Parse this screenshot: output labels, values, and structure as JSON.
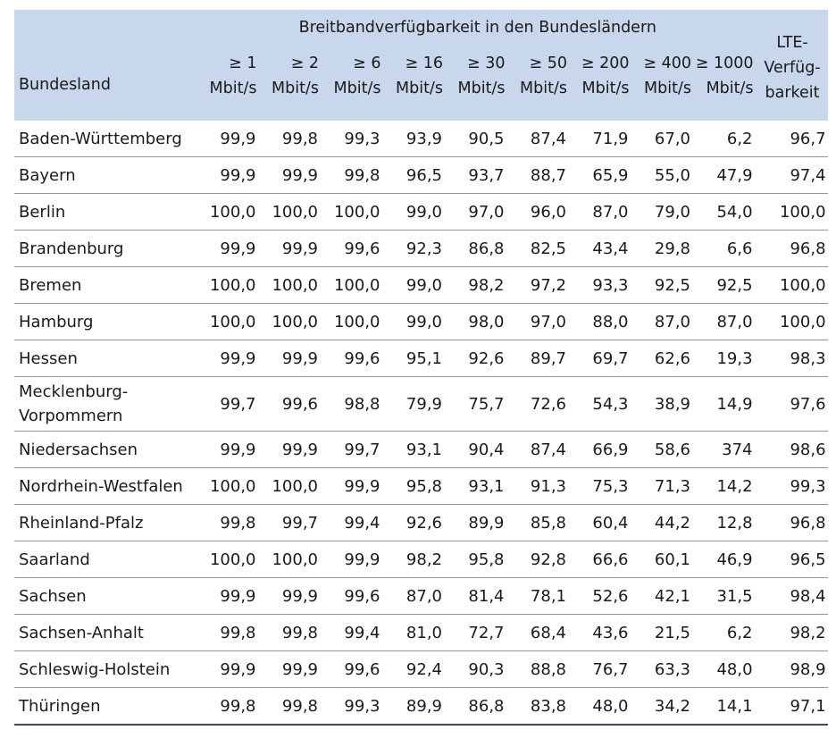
{
  "table": {
    "group_header": "Breitbandverfügbarkeit in den Bundesländern",
    "name_header": "Bundesland",
    "columns": [
      {
        "top": "≥ 1",
        "bottom": "Mbit/s"
      },
      {
        "top": "≥ 2",
        "bottom": "Mbit/s"
      },
      {
        "top": "≥ 6",
        "bottom": "Mbit/s"
      },
      {
        "top": "≥ 16",
        "bottom": "Mbit/s"
      },
      {
        "top": "≥ 30",
        "bottom": "Mbit/s"
      },
      {
        "top": "≥ 50",
        "bottom": "Mbit/s"
      },
      {
        "top": "≥ 200",
        "bottom": "Mbit/s"
      },
      {
        "top": "≥ 400",
        "bottom": "Mbit/s"
      },
      {
        "top": "≥ 1000",
        "bottom": "Mbit/s"
      }
    ],
    "lte_header": [
      "LTE-",
      "Verfüg-",
      "barkeit"
    ],
    "rows": [
      {
        "name": [
          "Baden-Württemberg"
        ],
        "values": [
          "99,9",
          "99,8",
          "99,3",
          "93,9",
          "90,5",
          "87,4",
          "71,9",
          "67,0",
          "6,2"
        ],
        "lte": "96,7"
      },
      {
        "name": [
          "Bayern"
        ],
        "values": [
          "99,9",
          "99,9",
          "99,8",
          "96,5",
          "93,7",
          "88,7",
          "65,9",
          "55,0",
          "47,9"
        ],
        "lte": "97,4"
      },
      {
        "name": [
          "Berlin"
        ],
        "values": [
          "100,0",
          "100,0",
          "100,0",
          "99,0",
          "97,0",
          "96,0",
          "87,0",
          "79,0",
          "54,0"
        ],
        "lte": "100,0"
      },
      {
        "name": [
          "Brandenburg"
        ],
        "values": [
          "99,9",
          "99,9",
          "99,6",
          "92,3",
          "86,8",
          "82,5",
          "43,4",
          "29,8",
          "6,6"
        ],
        "lte": "96,8"
      },
      {
        "name": [
          "Bremen"
        ],
        "values": [
          "100,0",
          "100,0",
          "100,0",
          "99,0",
          "98,2",
          "97,2",
          "93,3",
          "92,5",
          "92,5"
        ],
        "lte": "100,0"
      },
      {
        "name": [
          "Hamburg"
        ],
        "values": [
          "100,0",
          "100,0",
          "100,0",
          "99,0",
          "98,0",
          "97,0",
          "88,0",
          "87,0",
          "87,0"
        ],
        "lte": "100,0"
      },
      {
        "name": [
          "Hessen"
        ],
        "values": [
          "99,9",
          "99,9",
          "99,6",
          "95,1",
          "92,6",
          "89,7",
          "69,7",
          "62,6",
          "19,3"
        ],
        "lte": "98,3"
      },
      {
        "name": [
          "Mecklenburg-",
          "Vorpommern"
        ],
        "values": [
          "99,7",
          "99,6",
          "98,8",
          "79,9",
          "75,7",
          "72,6",
          "54,3",
          "38,9",
          "14,9"
        ],
        "lte": "97,6"
      },
      {
        "name": [
          "Niedersachsen"
        ],
        "values": [
          "99,9",
          "99,9",
          "99,7",
          "93,1",
          "90,4",
          "87,4",
          "66,9",
          "58,6",
          "374"
        ],
        "lte": "98,6"
      },
      {
        "name": [
          "Nordrhein-Westfalen"
        ],
        "values": [
          "100,0",
          "100,0",
          "99,9",
          "95,8",
          "93,1",
          "91,3",
          "75,3",
          "71,3",
          "14,2"
        ],
        "lte": "99,3"
      },
      {
        "name": [
          "Rheinland-Pfalz"
        ],
        "values": [
          "99,8",
          "99,7",
          "99,4",
          "92,6",
          "89,9",
          "85,8",
          "60,4",
          "44,2",
          "12,8"
        ],
        "lte": "96,8"
      },
      {
        "name": [
          "Saarland"
        ],
        "values": [
          "100,0",
          "100,0",
          "99,9",
          "98,2",
          "95,8",
          "92,8",
          "66,6",
          "60,1",
          "46,9"
        ],
        "lte": "96,5"
      },
      {
        "name": [
          "Sachsen"
        ],
        "values": [
          "99,9",
          "99,9",
          "99,6",
          "87,0",
          "81,4",
          "78,1",
          "52,6",
          "42,1",
          "31,5"
        ],
        "lte": "98,4"
      },
      {
        "name": [
          "Sachsen-Anhalt"
        ],
        "values": [
          "99,8",
          "99,8",
          "99,4",
          "81,0",
          "72,7",
          "68,4",
          "43,6",
          "21,5",
          "6,2"
        ],
        "lte": "98,2"
      },
      {
        "name": [
          "Schleswig-Holstein"
        ],
        "values": [
          "99,9",
          "99,9",
          "99,6",
          "92,4",
          "90,3",
          "88,8",
          "76,7",
          "63,3",
          "48,0"
        ],
        "lte": "98,9"
      },
      {
        "name": [
          "Thüringen"
        ],
        "values": [
          "99,8",
          "99,8",
          "99,3",
          "89,9",
          "86,8",
          "83,8",
          "48,0",
          "34,2",
          "14,1"
        ],
        "lte": "97,1"
      }
    ]
  }
}
